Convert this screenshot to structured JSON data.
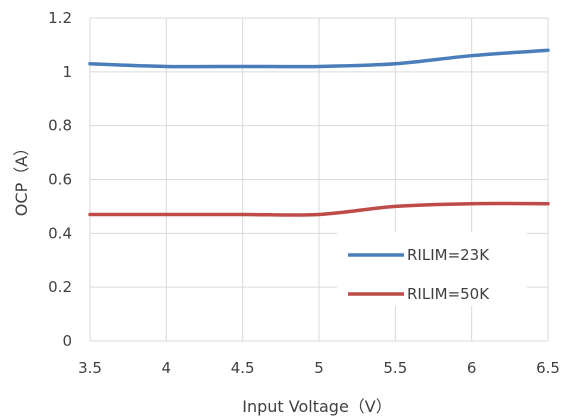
{
  "chart_data": {
    "type": "line",
    "title": "",
    "xlabel": "Input Voltage（V）",
    "ylabel": "OCP（A）",
    "xlim": [
      3.5,
      6.5
    ],
    "ylim": [
      0,
      1.2
    ],
    "x_ticks": [
      "3.5",
      "4",
      "4.5",
      "5",
      "5.5",
      "6",
      "6.5"
    ],
    "y_ticks": [
      "0",
      "0.2",
      "0.4",
      "0.6",
      "0.8",
      "1",
      "1.2"
    ],
    "grid": true,
    "legend_position": "bottom-right",
    "series": [
      {
        "name": "RILIM=23K",
        "color": "#4a7ebb",
        "x": [
          3.5,
          4,
          4.5,
          5,
          5.5,
          6,
          6.5
        ],
        "y": [
          1.03,
          1.02,
          1.02,
          1.02,
          1.03,
          1.06,
          1.08
        ]
      },
      {
        "name": "RILIM=50K",
        "color": "#be4b48",
        "x": [
          3.5,
          4,
          4.5,
          5,
          5.5,
          6,
          6.5
        ],
        "y": [
          0.47,
          0.47,
          0.47,
          0.47,
          0.5,
          0.51,
          0.51
        ]
      }
    ]
  }
}
